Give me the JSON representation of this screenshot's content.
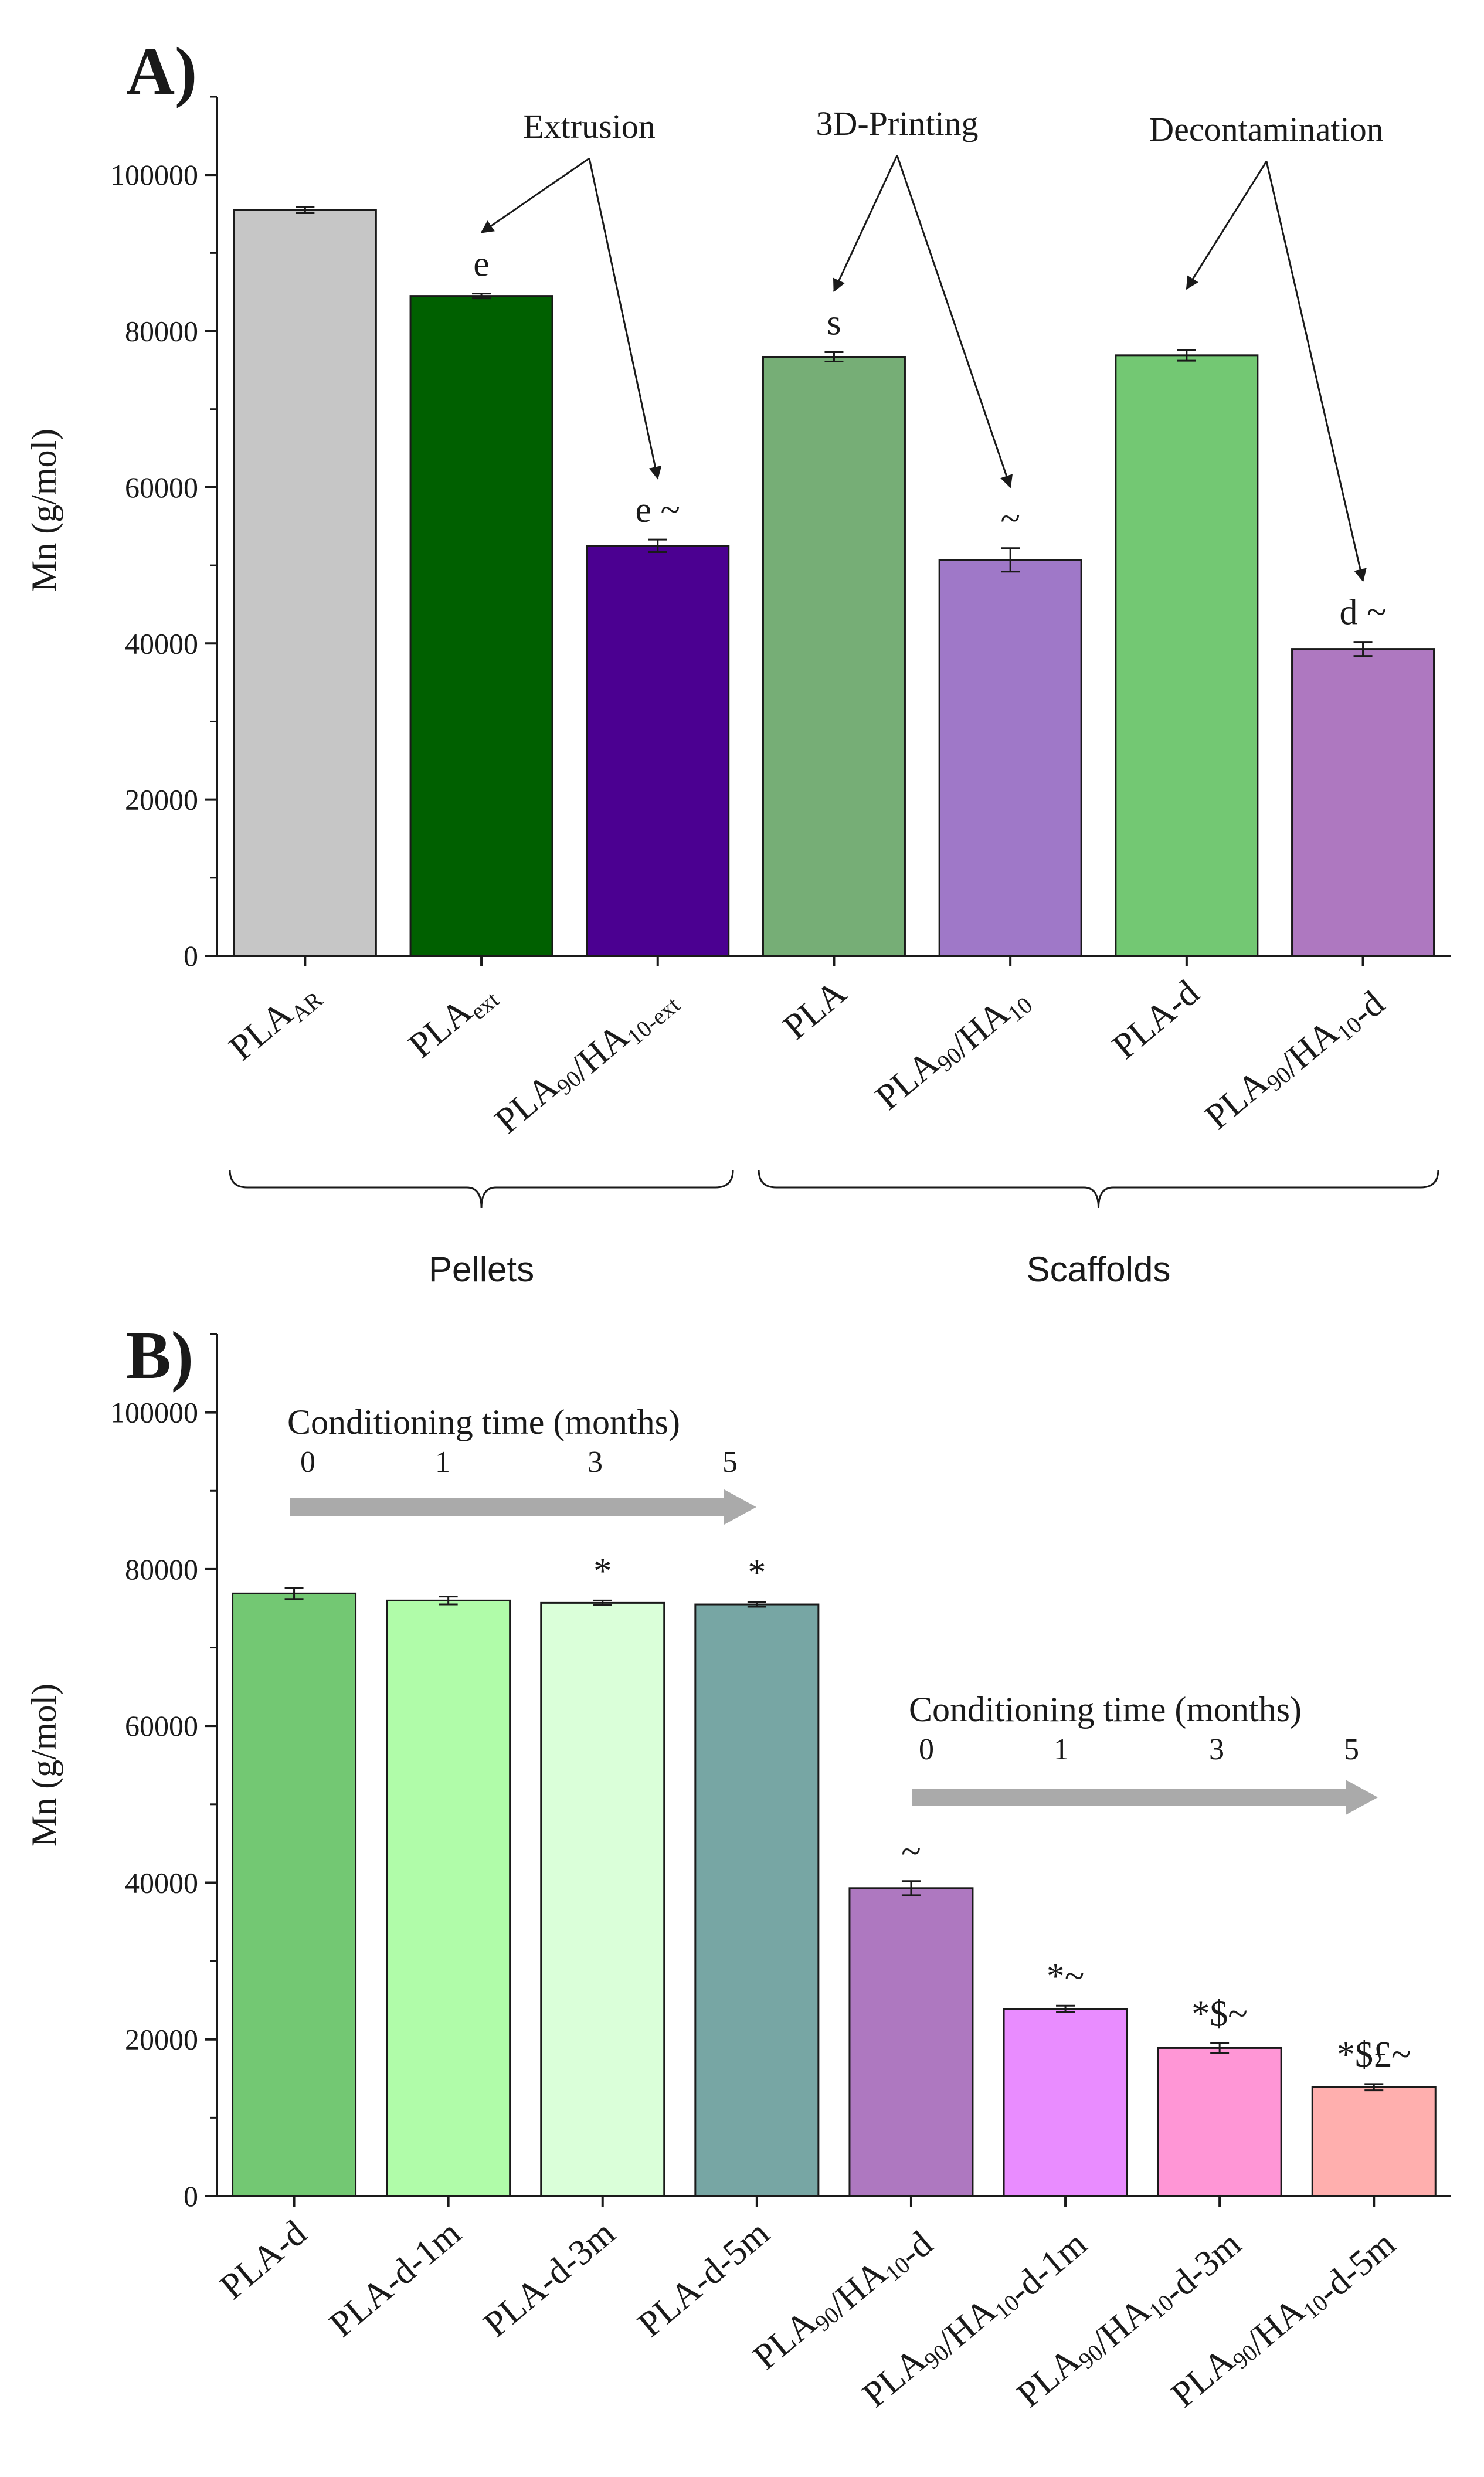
{
  "chart_data": [
    {
      "panel": "A)",
      "type": "bar",
      "ylabel": "Mn (g/mol)",
      "ylim": [
        0,
        110000
      ],
      "yticks": [
        0,
        20000,
        40000,
        60000,
        80000,
        100000
      ],
      "categories": [
        {
          "base": "PLA",
          "parts": [
            [
              "PLA",
              ""
            ],
            [
              "AR",
              "sub"
            ]
          ]
        },
        {
          "base": "PLA",
          "parts": [
            [
              "PLA",
              ""
            ],
            [
              "ext",
              "sub"
            ]
          ]
        },
        {
          "base": "PLA90/HA10-ext",
          "parts": [
            [
              "PLA",
              ""
            ],
            [
              "90",
              "sub"
            ],
            [
              "/HA",
              ""
            ],
            [
              "10-ext",
              "sub"
            ]
          ]
        },
        {
          "base": "PLA",
          "parts": [
            [
              "PLA",
              ""
            ]
          ]
        },
        {
          "base": "PLA90/HA10",
          "parts": [
            [
              "PLA",
              ""
            ],
            [
              "90",
              "sub"
            ],
            [
              "/HA",
              ""
            ],
            [
              "10",
              "sub"
            ]
          ]
        },
        {
          "base": "PLA-d",
          "parts": [
            [
              "PLA-d",
              ""
            ]
          ]
        },
        {
          "base": "PLA90/HA10-d",
          "parts": [
            [
              "PLA",
              ""
            ],
            [
              "90",
              "sub"
            ],
            [
              "/HA",
              ""
            ],
            [
              "10",
              "sub"
            ],
            [
              "-d",
              ""
            ]
          ]
        }
      ],
      "values": [
        95500,
        84500,
        52500,
        76700,
        50700,
        76900,
        39300
      ],
      "errors": [
        400,
        300,
        800,
        600,
        1500,
        700,
        900
      ],
      "colors": [
        "#c6c6c6",
        "#006000",
        "#4b0091",
        "#76ae76",
        "#9f78c8",
        "#73c873",
        "#ae78c0"
      ],
      "significance": [
        "",
        "e",
        "e ~",
        "s",
        "~",
        "",
        "d ~"
      ],
      "annotations": [
        {
          "label": "Extrusion",
          "targets": [
            1,
            2
          ]
        },
        {
          "label": "3D-Printing",
          "targets": [
            3,
            4
          ]
        },
        {
          "label": "Decontamination",
          "targets": [
            5,
            6
          ]
        }
      ],
      "groups": [
        {
          "label": "Pellets",
          "range": [
            0,
            2
          ]
        },
        {
          "label": "Scaffolds",
          "range": [
            3,
            6
          ]
        }
      ]
    },
    {
      "panel": "B)",
      "type": "bar",
      "ylabel": "Mn (g/mol)",
      "ylim": [
        0,
        110000
      ],
      "yticks": [
        0,
        20000,
        40000,
        60000,
        80000,
        100000
      ],
      "categories": [
        {
          "base": "PLA-d",
          "parts": [
            [
              "PLA-d",
              ""
            ]
          ]
        },
        {
          "base": "PLA-d-1m",
          "parts": [
            [
              "PLA-d-1m",
              ""
            ]
          ]
        },
        {
          "base": "PLA-d-3m",
          "parts": [
            [
              "PLA-d-3m",
              ""
            ]
          ]
        },
        {
          "base": "PLA-d-5m",
          "parts": [
            [
              "PLA-d-5m",
              ""
            ]
          ]
        },
        {
          "base": "PLA90/HA10-d",
          "parts": [
            [
              "PLA",
              ""
            ],
            [
              "90",
              "sub"
            ],
            [
              "/HA",
              ""
            ],
            [
              "10",
              "sub"
            ],
            [
              "-d",
              ""
            ]
          ]
        },
        {
          "base": "PLA90/HA10-d-1m",
          "parts": [
            [
              "PLA",
              ""
            ],
            [
              "90",
              "sub"
            ],
            [
              "/HA",
              ""
            ],
            [
              "10",
              "sub"
            ],
            [
              "-d-1m",
              ""
            ]
          ]
        },
        {
          "base": "PLA90/HA10-d-3m",
          "parts": [
            [
              "PLA",
              ""
            ],
            [
              "90",
              "sub"
            ],
            [
              "/HA",
              ""
            ],
            [
              "10",
              "sub"
            ],
            [
              "-d-3m",
              ""
            ]
          ]
        },
        {
          "base": "PLA90/HA10-d-5m",
          "parts": [
            [
              "PLA",
              ""
            ],
            [
              "90",
              "sub"
            ],
            [
              "/HA",
              ""
            ],
            [
              "10",
              "sub"
            ],
            [
              "-d-5m",
              ""
            ]
          ]
        }
      ],
      "values": [
        76900,
        76000,
        75700,
        75500,
        39300,
        23900,
        18900,
        13900
      ],
      "errors": [
        700,
        500,
        300,
        300,
        900,
        400,
        600,
        400
      ],
      "colors": [
        "#73c873",
        "#b0fca9",
        "#daffd9",
        "#77a6a4",
        "#ae78c0",
        "#e98cff",
        "#ff96d6",
        "#ffafae"
      ],
      "significance": [
        "",
        "",
        "*",
        "*",
        "~",
        "*~",
        "*$~",
        "*$£~"
      ],
      "conditioning": [
        {
          "title": "Conditioning time (months)",
          "ticks": [
            "0",
            "1",
            "3",
            "5"
          ],
          "range": [
            0,
            3
          ]
        },
        {
          "title": "Conditioning time (months)",
          "ticks": [
            "0",
            "1",
            "3",
            "5"
          ],
          "range": [
            4,
            7
          ]
        }
      ]
    }
  ]
}
